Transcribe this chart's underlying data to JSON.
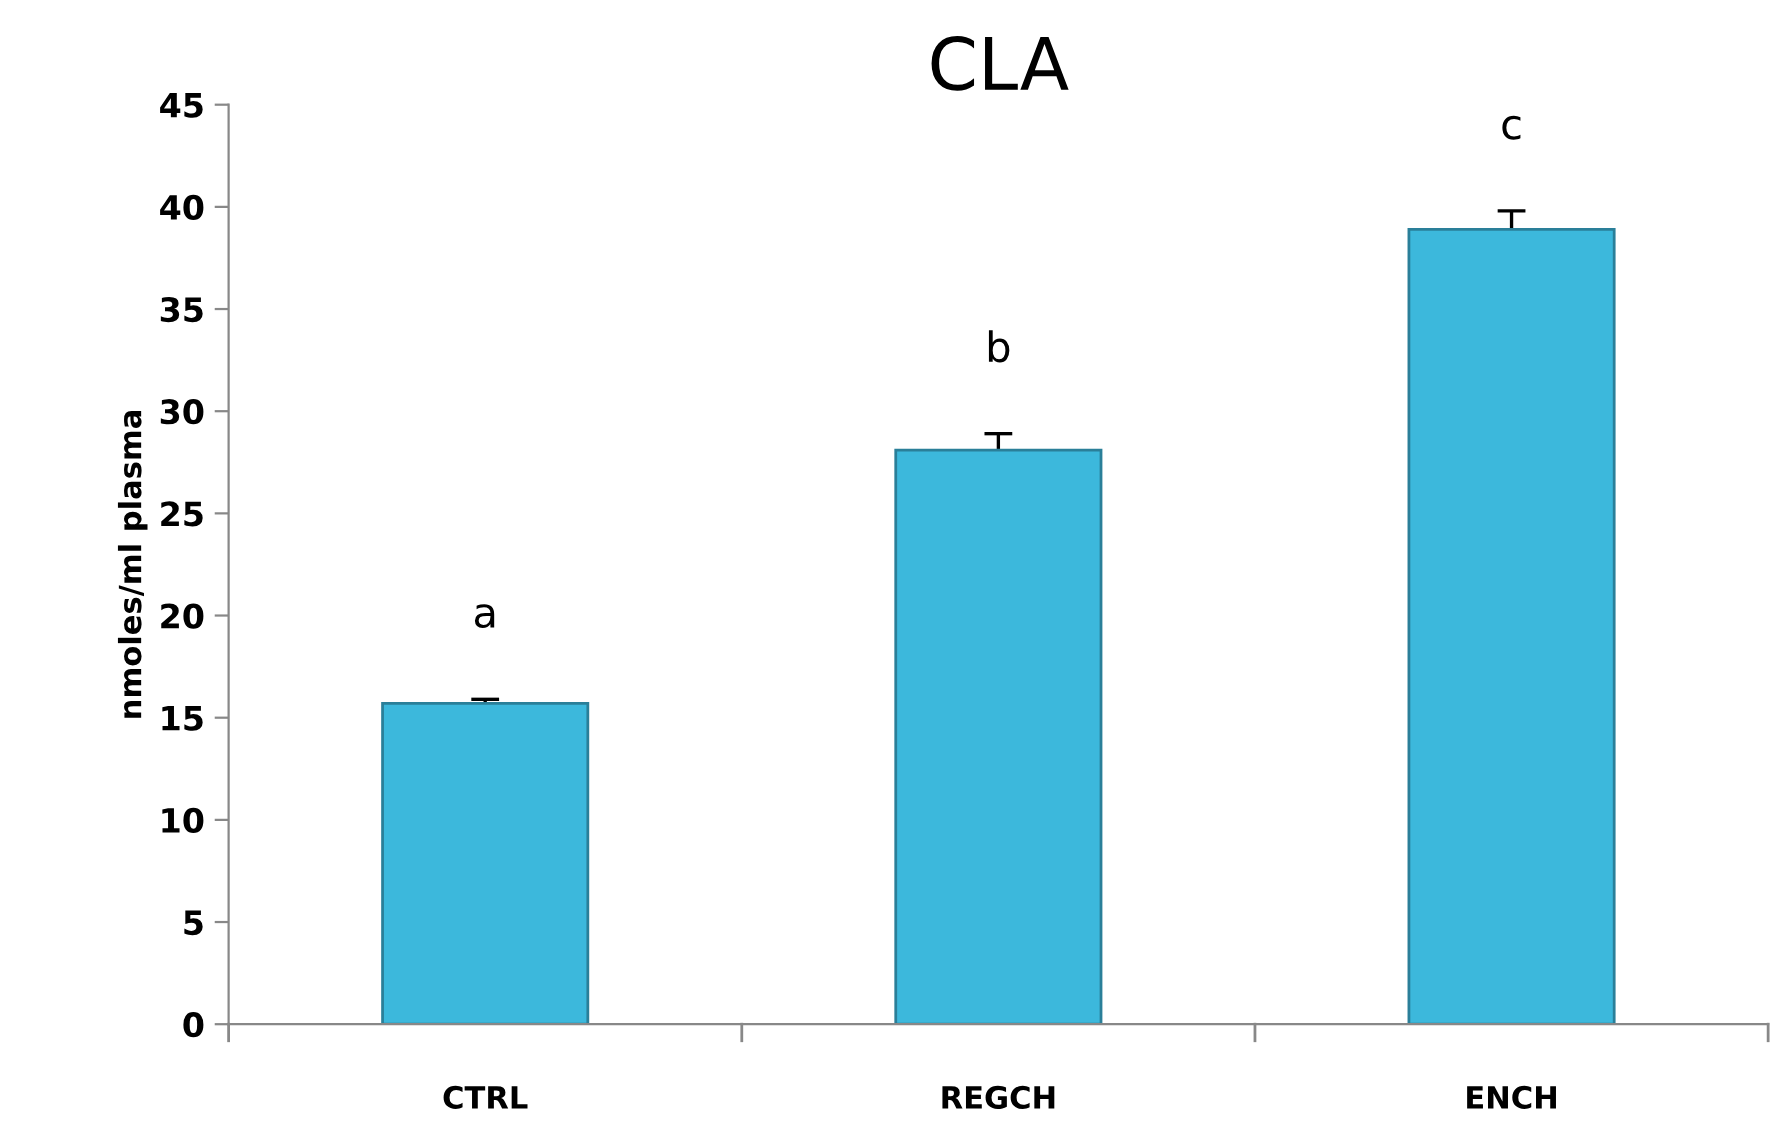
{
  "chart_data": {
    "type": "bar",
    "title": "CLA",
    "ylabel": "nmoles/ml plasma",
    "categories": [
      "CTRL",
      "REGCH",
      "ENCH"
    ],
    "values": [
      15.7,
      28.1,
      38.9
    ],
    "errors": [
      0.2,
      0.8,
      0.9
    ],
    "color": "#3cb8dc",
    "ylim": [
      0,
      45
    ],
    "yticks": [
      0,
      5,
      10,
      15,
      20,
      25,
      30,
      35,
      40,
      45
    ],
    "grid": false,
    "annotations": [
      "a",
      "b",
      "c"
    ]
  }
}
